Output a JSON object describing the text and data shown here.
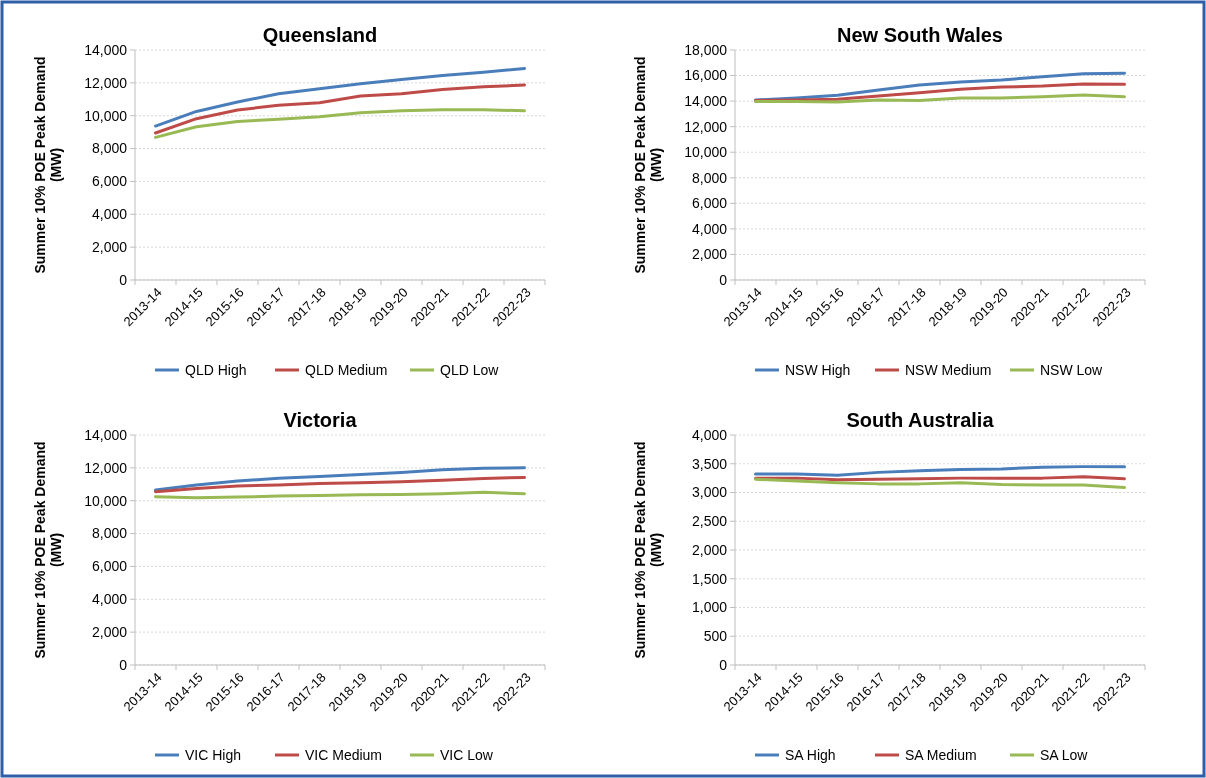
{
  "chart_data": [
    {
      "type": "line",
      "title": "Queensland",
      "ylabel": "Summer 10% POE Peak Demand (MW)",
      "categories": [
        "2013-14",
        "2014-15",
        "2015-16",
        "2016-17",
        "2017-18",
        "2018-19",
        "2019-20",
        "2020-21",
        "2021-22",
        "2022-23"
      ],
      "ylim": [
        0,
        14000
      ],
      "yticks": [
        {
          "value": 0,
          "label": "0"
        },
        {
          "value": 2000,
          "label": "2,000"
        },
        {
          "value": 4000,
          "label": "4,000"
        },
        {
          "value": 6000,
          "label": "6,000"
        },
        {
          "value": 8000,
          "label": "8,000"
        },
        {
          "value": 10000,
          "label": "10,000"
        },
        {
          "value": 12000,
          "label": "12,000"
        },
        {
          "value": 14000,
          "label": "14,000"
        }
      ],
      "grid": "y",
      "legend": "bottom",
      "series": [
        {
          "name": "QLD High",
          "color": "#4a7ebb",
          "values": [
            9370,
            10260,
            10830,
            11340,
            11640,
            11950,
            12210,
            12450,
            12640,
            12880
          ]
        },
        {
          "name": "QLD Medium",
          "color": "#be4b48",
          "values": [
            8950,
            9820,
            10350,
            10630,
            10790,
            11200,
            11340,
            11600,
            11760,
            11870
          ]
        },
        {
          "name": "QLD Low",
          "color": "#98b954",
          "values": [
            8680,
            9330,
            9650,
            9780,
            9940,
            10180,
            10300,
            10370,
            10370,
            10300
          ]
        }
      ]
    },
    {
      "type": "line",
      "title": "New South Wales",
      "ylabel": "Summer 10% POE Peak Demand (MW)",
      "categories": [
        "2013-14",
        "2014-15",
        "2015-16",
        "2016-17",
        "2017-18",
        "2018-19",
        "2019-20",
        "2020-21",
        "2021-22",
        "2022-23"
      ],
      "ylim": [
        0,
        18000
      ],
      "yticks": [
        {
          "value": 0,
          "label": "0"
        },
        {
          "value": 2000,
          "label": "2,000"
        },
        {
          "value": 4000,
          "label": "4,000"
        },
        {
          "value": 6000,
          "label": "6,000"
        },
        {
          "value": 8000,
          "label": "8,000"
        },
        {
          "value": 10000,
          "label": "10,000"
        },
        {
          "value": 12000,
          "label": "12,000"
        },
        {
          "value": 14000,
          "label": "14,000"
        },
        {
          "value": 16000,
          "label": "16,000"
        },
        {
          "value": 18000,
          "label": "18,000"
        }
      ],
      "grid": "y",
      "legend": "bottom",
      "series": [
        {
          "name": "NSW High",
          "color": "#4a7ebb",
          "values": [
            14090,
            14240,
            14450,
            14870,
            15260,
            15500,
            15650,
            15910,
            16150,
            16180
          ]
        },
        {
          "name": "NSW Medium",
          "color": "#be4b48",
          "values": [
            14040,
            14090,
            14140,
            14400,
            14660,
            14920,
            15100,
            15180,
            15340,
            15310
          ]
        },
        {
          "name": "NSW Low",
          "color": "#98b954",
          "values": [
            13960,
            13960,
            13930,
            14090,
            14040,
            14240,
            14240,
            14350,
            14480,
            14350
          ]
        }
      ]
    },
    {
      "type": "line",
      "title": "Victoria",
      "ylabel": "Summer 10% POE Peak Demand (MW)",
      "categories": [
        "2013-14",
        "2014-15",
        "2015-16",
        "2016-17",
        "2017-18",
        "2018-19",
        "2019-20",
        "2020-21",
        "2021-22",
        "2022-23"
      ],
      "ylim": [
        0,
        14000
      ],
      "yticks": [
        {
          "value": 0,
          "label": "0"
        },
        {
          "value": 2000,
          "label": "2,000"
        },
        {
          "value": 4000,
          "label": "4,000"
        },
        {
          "value": 6000,
          "label": "6,000"
        },
        {
          "value": 8000,
          "label": "8,000"
        },
        {
          "value": 10000,
          "label": "10,000"
        },
        {
          "value": 12000,
          "label": "12,000"
        },
        {
          "value": 14000,
          "label": "14,000"
        }
      ],
      "grid": "y",
      "legend": "bottom",
      "series": [
        {
          "name": "VIC High",
          "color": "#4a7ebb",
          "values": [
            10650,
            10950,
            11200,
            11360,
            11480,
            11600,
            11720,
            11890,
            11970,
            12010
          ]
        },
        {
          "name": "VIC Medium",
          "color": "#be4b48",
          "values": [
            10550,
            10750,
            10900,
            10950,
            11050,
            11100,
            11150,
            11250,
            11350,
            11420
          ]
        },
        {
          "name": "VIC Low",
          "color": "#98b954",
          "values": [
            10240,
            10180,
            10220,
            10280,
            10320,
            10360,
            10380,
            10420,
            10510,
            10420
          ]
        }
      ]
    },
    {
      "type": "line",
      "title": "South Australia",
      "ylabel": "Summer 10% POE Peak Demand (MW)",
      "categories": [
        "2013-14",
        "2014-15",
        "2015-16",
        "2016-17",
        "2017-18",
        "2018-19",
        "2019-20",
        "2020-21",
        "2021-22",
        "2022-23"
      ],
      "ylim": [
        0,
        4000
      ],
      "yticks": [
        {
          "value": 0,
          "label": "0"
        },
        {
          "value": 500,
          "label": "500"
        },
        {
          "value": 1000,
          "label": "1,000"
        },
        {
          "value": 1500,
          "label": "1,500"
        },
        {
          "value": 2000,
          "label": "2,000"
        },
        {
          "value": 2500,
          "label": "2,500"
        },
        {
          "value": 3000,
          "label": "3,000"
        },
        {
          "value": 3500,
          "label": "3,500"
        },
        {
          "value": 4000,
          "label": "4,000"
        }
      ],
      "grid": "y",
      "legend": "bottom",
      "series": [
        {
          "name": "SA High",
          "color": "#4a7ebb",
          "values": [
            3320,
            3320,
            3300,
            3350,
            3380,
            3400,
            3410,
            3440,
            3450,
            3450
          ]
        },
        {
          "name": "SA Medium",
          "color": "#be4b48",
          "values": [
            3250,
            3250,
            3220,
            3230,
            3240,
            3250,
            3250,
            3250,
            3275,
            3240
          ]
        },
        {
          "name": "SA Low",
          "color": "#98b954",
          "values": [
            3230,
            3200,
            3170,
            3150,
            3150,
            3170,
            3140,
            3130,
            3130,
            3085
          ]
        }
      ]
    }
  ]
}
